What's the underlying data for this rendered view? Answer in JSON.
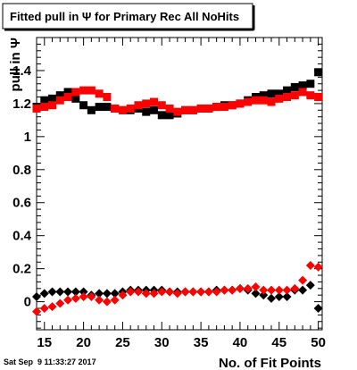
{
  "chart_data": {
    "type": "scatter",
    "title": "Fitted pull in Ψ  for Primary Rec All NoHits",
    "xlabel": "No. of Fit Points",
    "ylabel": "pull in Ψ",
    "xlim": [
      14,
      50.5
    ],
    "ylim": [
      -0.17,
      1.6
    ],
    "xticks": [
      15,
      20,
      25,
      30,
      35,
      40,
      45,
      50
    ],
    "yticks": [
      0,
      0.2,
      0.4,
      0.6,
      0.8,
      1,
      1.2,
      1.4
    ],
    "ytick_labels": [
      "0",
      "0.2",
      "0.4",
      "0.6",
      "0.8",
      "1",
      "1.2",
      "1.4"
    ],
    "timestamp": "Sat Sep  9 11:33:27 2017",
    "grid": false,
    "series": [
      {
        "marker": "square",
        "color": "#000000",
        "x": [
          14,
          15,
          16,
          17,
          18,
          19,
          20,
          21,
          22,
          23,
          24,
          25,
          26,
          27,
          28,
          29,
          30,
          31,
          32,
          33,
          34,
          35,
          36,
          37,
          38,
          39,
          40,
          41,
          42,
          43,
          44,
          45,
          46,
          47,
          48,
          49,
          50
        ],
        "y": [
          1.18,
          1.22,
          1.23,
          1.25,
          1.27,
          1.23,
          1.19,
          1.16,
          1.18,
          1.18,
          1.17,
          1.16,
          1.16,
          1.17,
          1.15,
          1.16,
          1.13,
          1.13,
          1.14,
          1.16,
          1.16,
          1.17,
          1.17,
          1.18,
          1.19,
          1.19,
          1.2,
          1.22,
          1.24,
          1.25,
          1.26,
          1.26,
          1.28,
          1.3,
          1.31,
          1.32,
          1.39
        ]
      },
      {
        "marker": "square",
        "color": "#ff0000",
        "x": [
          14,
          15,
          16,
          17,
          18,
          19,
          20,
          21,
          22,
          23,
          24,
          25,
          26,
          27,
          28,
          29,
          30,
          31,
          32,
          33,
          34,
          35,
          36,
          37,
          38,
          39,
          40,
          41,
          42,
          43,
          44,
          45,
          46,
          47,
          48,
          49,
          50
        ],
        "y": [
          1.17,
          1.18,
          1.19,
          1.22,
          1.24,
          1.27,
          1.28,
          1.28,
          1.26,
          1.24,
          1.17,
          1.16,
          1.17,
          1.19,
          1.2,
          1.21,
          1.19,
          1.17,
          1.15,
          1.16,
          1.16,
          1.17,
          1.17,
          1.18,
          1.18,
          1.19,
          1.2,
          1.21,
          1.22,
          1.22,
          1.21,
          1.23,
          1.24,
          1.25,
          1.27,
          1.25,
          1.24
        ]
      },
      {
        "marker": "diamond",
        "color": "#000000",
        "x": [
          14,
          15,
          16,
          17,
          18,
          19,
          20,
          21,
          22,
          23,
          24,
          25,
          26,
          27,
          28,
          29,
          30,
          31,
          32,
          33,
          34,
          35,
          36,
          37,
          38,
          39,
          40,
          41,
          42,
          43,
          44,
          45,
          46,
          47,
          48,
          49,
          50
        ],
        "y": [
          0.03,
          0.05,
          0.06,
          0.06,
          0.06,
          0.06,
          0.06,
          0.04,
          0.05,
          0.05,
          0.05,
          0.06,
          0.07,
          0.07,
          0.07,
          0.07,
          0.07,
          0.06,
          0.06,
          0.06,
          0.06,
          0.06,
          0.06,
          0.07,
          0.07,
          0.07,
          0.08,
          0.07,
          0.05,
          0.04,
          0.02,
          0.03,
          0.03,
          0.07,
          0.07,
          0.1,
          -0.04
        ]
      },
      {
        "marker": "diamond",
        "color": "#ff0000",
        "x": [
          14,
          15,
          16,
          17,
          18,
          19,
          20,
          21,
          22,
          23,
          24,
          25,
          26,
          27,
          28,
          29,
          30,
          31,
          32,
          33,
          34,
          35,
          36,
          37,
          38,
          39,
          40,
          41,
          42,
          43,
          44,
          45,
          46,
          47,
          48,
          49,
          50
        ],
        "y": [
          -0.06,
          -0.04,
          -0.03,
          -0.01,
          0.01,
          0.02,
          0.03,
          0.03,
          0.01,
          0.0,
          0.01,
          0.04,
          0.06,
          0.06,
          0.05,
          0.05,
          0.06,
          0.06,
          0.05,
          0.06,
          0.06,
          0.06,
          0.06,
          0.06,
          0.07,
          0.07,
          0.08,
          0.08,
          0.09,
          0.07,
          0.07,
          0.07,
          0.07,
          0.08,
          0.13,
          0.22,
          0.21
        ]
      }
    ]
  }
}
